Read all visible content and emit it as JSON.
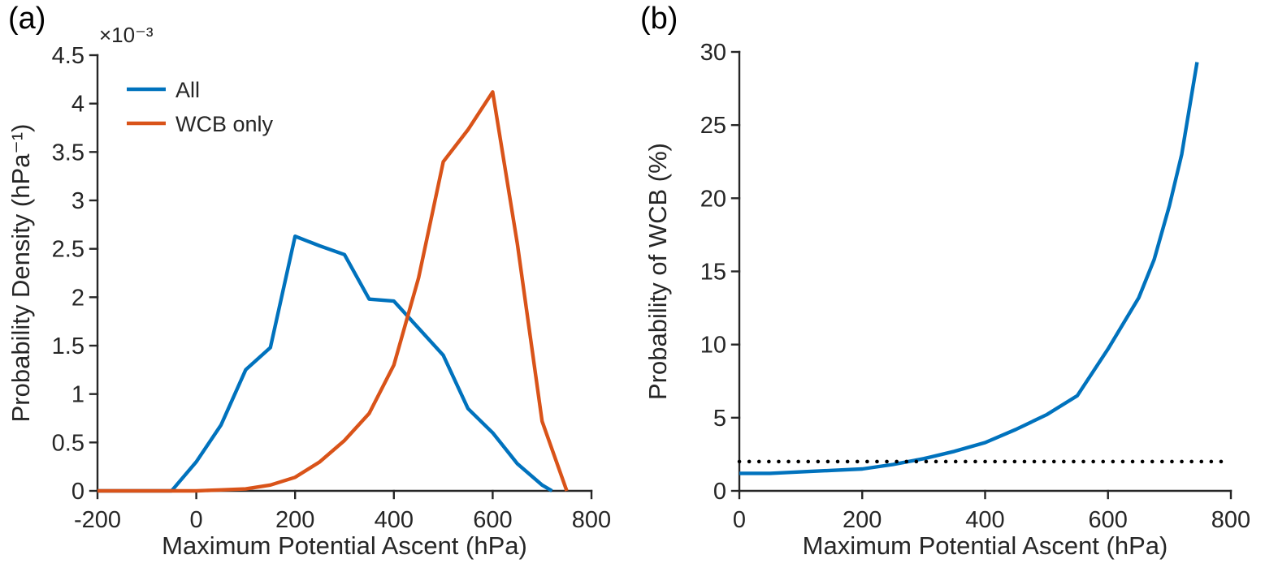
{
  "figure": {
    "panel_labels": [
      "(a)",
      "(b)"
    ],
    "background_color": "#ffffff",
    "accent_colors": {
      "blue": "#0072BD",
      "orange": "#D95319",
      "black": "#000000"
    }
  },
  "chart_data": [
    {
      "type": "line",
      "panel": "a",
      "title": "",
      "xlabel": "Maximum Potential Ascent (hPa)",
      "ylabel": "Probability Density (hPa⁻¹)",
      "y_exponent_label": "×10⁻³",
      "xlim": [
        -200,
        800
      ],
      "ylim": [
        0,
        4.5
      ],
      "xticks": [
        -200,
        0,
        200,
        400,
        600,
        800
      ],
      "yticks": [
        0,
        0.5,
        1,
        1.5,
        2,
        2.5,
        3,
        3.5,
        4,
        4.5
      ],
      "grid": false,
      "legend": {
        "position": "top-left",
        "entries": [
          "All",
          "WCB only"
        ]
      },
      "series": [
        {
          "name": "All",
          "color": "#0072BD",
          "style": "solid",
          "x": [
            -200,
            -150,
            -100,
            -50,
            0,
            50,
            100,
            150,
            200,
            250,
            300,
            350,
            400,
            450,
            500,
            550,
            600,
            650,
            700,
            720
          ],
          "y": [
            0,
            0,
            0,
            0,
            0.3,
            0.68,
            1.25,
            1.48,
            2.63,
            2.53,
            2.44,
            1.98,
            1.96,
            1.68,
            1.4,
            0.85,
            0.6,
            0.28,
            0.06,
            0
          ]
        },
        {
          "name": "WCB only",
          "color": "#D95319",
          "style": "solid",
          "x": [
            -200,
            -150,
            -100,
            -50,
            0,
            50,
            100,
            150,
            200,
            250,
            300,
            350,
            400,
            450,
            500,
            550,
            600,
            650,
            700,
            750
          ],
          "y": [
            0,
            0,
            0,
            0,
            0,
            0.01,
            0.02,
            0.06,
            0.14,
            0.3,
            0.52,
            0.8,
            1.3,
            2.2,
            3.4,
            3.73,
            4.12,
            2.55,
            0.72,
            0
          ]
        }
      ]
    },
    {
      "type": "line",
      "panel": "b",
      "title": "",
      "xlabel": "Maximum Potential Ascent (hPa)",
      "ylabel": "Probability of WCB (%)",
      "xlim": [
        0,
        800
      ],
      "ylim": [
        0,
        30
      ],
      "xticks": [
        0,
        200,
        400,
        600,
        800
      ],
      "yticks": [
        0,
        5,
        10,
        15,
        20,
        25,
        30
      ],
      "grid": false,
      "series": [
        {
          "name": "Probability of WCB",
          "color": "#0072BD",
          "style": "solid",
          "x": [
            0,
            50,
            100,
            150,
            200,
            250,
            300,
            350,
            400,
            450,
            500,
            550,
            600,
            650,
            675,
            700,
            720,
            745
          ],
          "y": [
            1.2,
            1.2,
            1.3,
            1.4,
            1.5,
            1.8,
            2.2,
            2.7,
            3.3,
            4.2,
            5.2,
            6.5,
            9.7,
            13.2,
            15.8,
            19.5,
            23.0,
            29.3
          ]
        },
        {
          "name": "reference-level",
          "color": "#000000",
          "style": "dotted",
          "x": [
            0,
            800
          ],
          "y": [
            2,
            2
          ]
        }
      ]
    }
  ]
}
